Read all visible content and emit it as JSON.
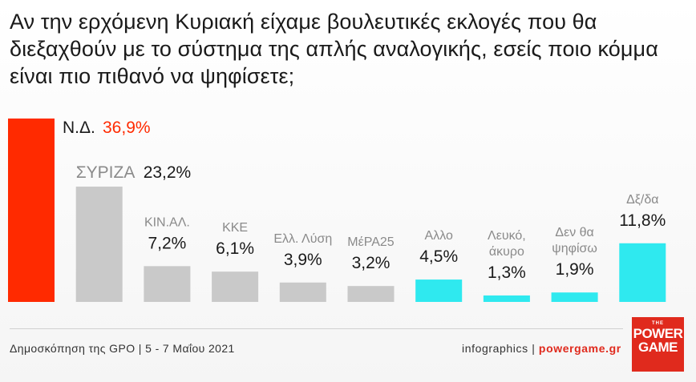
{
  "title": "Αν την ερχόμενη Κυριακή είχαμε βουλευτικές εκλογές που θα διεξαχθούν με το σύστημα της απλής αναλογικής, εσείς ποιο κόμμα είναι πιο πιθανό να ψηφίσετε;",
  "footer": {
    "source": "Δημοσκόπηση της GPO | 5 - 7 Μαΐου 2021",
    "credit_prefix": "infographics",
    "credit_sep": " | ",
    "credit_site": "powergame.gr"
  },
  "logo": {
    "top": "THE",
    "line1": "POWER",
    "line2": "GAME"
  },
  "colors": {
    "red": "#ff2a00",
    "gray": "#c9c9c9",
    "cyan": "#2fe9ef",
    "label_gray": "#8a8a8a",
    "value_dark": "#1a1a1a"
  },
  "chart_data": {
    "type": "bar",
    "title": "",
    "xlabel": "",
    "ylabel": "",
    "ylim": [
      0,
      40
    ],
    "grid": false,
    "legend": "none",
    "bars": [
      {
        "label": [
          "Ν.Δ."
        ],
        "value_text": "36,9%",
        "value": 36.9,
        "color": "red"
      },
      {
        "label": [
          "ΣΥΡΙΖΑ"
        ],
        "value_text": "23,2%",
        "value": 23.2,
        "color": "gray"
      },
      {
        "label": [
          "ΚΙΝ.ΑΛ."
        ],
        "value_text": "7,2%",
        "value": 7.2,
        "color": "gray"
      },
      {
        "label": [
          "ΚΚΕ"
        ],
        "value_text": "6,1%",
        "value": 6.1,
        "color": "gray"
      },
      {
        "label": [
          "Ελλ. Λύση"
        ],
        "value_text": "3,9%",
        "value": 3.9,
        "color": "gray"
      },
      {
        "label": [
          "ΜέΡΑ25"
        ],
        "value_text": "3,2%",
        "value": 3.2,
        "color": "gray"
      },
      {
        "label": [
          "Αλλο"
        ],
        "value_text": "4,5%",
        "value": 4.5,
        "color": "cyan"
      },
      {
        "label": [
          "Λευκό,",
          "άκυρο"
        ],
        "value_text": "1,3%",
        "value": 1.3,
        "color": "cyan"
      },
      {
        "label": [
          "Δεν θα",
          "ψηφίσω"
        ],
        "value_text": "1,9%",
        "value": 1.9,
        "color": "cyan"
      },
      {
        "label": [
          "Δξ/δα"
        ],
        "value_text": "11,8%",
        "value": 11.8,
        "color": "cyan"
      }
    ]
  }
}
